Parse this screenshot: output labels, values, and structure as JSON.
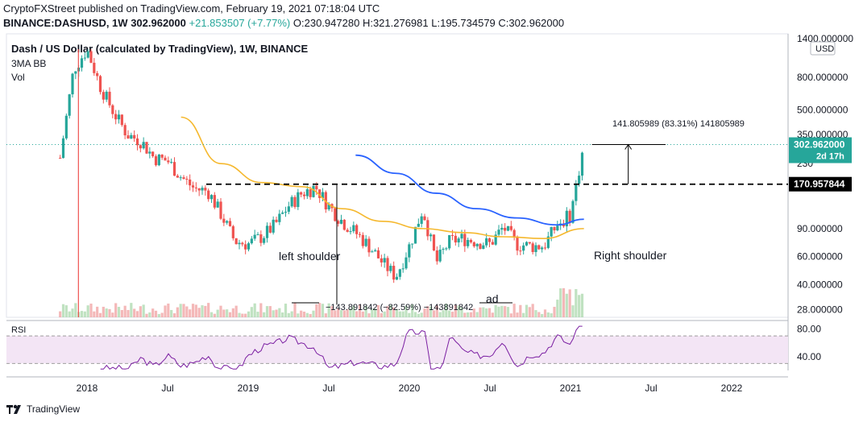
{
  "header": {
    "publisher": "CryptoFXStreet published on TradingView.com, February 19, 2021 07:18:04 UTC",
    "symbol": "BINANCE:DASHUSD, 1W",
    "last": "302.962000",
    "change": "+21.853507 (+7.77%)",
    "open": "O:230.947280",
    "high": "H:321.276981",
    "low": "L:195.734579",
    "close": "C:302.962000"
  },
  "chart_title": "Dash / US Dollar (calculated by TradingView), 1W, BINANCE",
  "legend": {
    "indicator1": "3MA BB",
    "indicator2": "Vol",
    "rsi": "RSI"
  },
  "brand": "TradingView",
  "colors": {
    "up": "#26a69a",
    "down": "#ef5350",
    "ma_orange": "#f5b82e",
    "ma_blue": "#2962ff",
    "rsi": "#7b1fa2",
    "rsi_band": "#f3e5f5"
  },
  "chart_data": {
    "type": "candlestick",
    "title": "Dash / US Dollar (calculated by TradingView), 1W, BINANCE",
    "scale": "log",
    "ylim": [
      25,
      1500
    ],
    "y_ticks": [
      "1400.000000",
      "800.000000",
      "500.000000",
      "350.000000",
      "230",
      "90.000000",
      "60.000000",
      "40.000000",
      "28.000000"
    ],
    "y_currency": "USD",
    "x_ticks": [
      "2018",
      "Jul",
      "2019",
      "Jul",
      "2020",
      "Jul",
      "2021",
      "Jul",
      "2022"
    ],
    "price_labels": [
      {
        "text": "302.962000",
        "sub": "2d 17h",
        "value": 302.962,
        "color": "#26a69a"
      },
      {
        "text": "170.957844",
        "value": 170.957844,
        "color": "#000000"
      }
    ],
    "annotations": {
      "left_shoulder": "left shoulder",
      "right_shoulder": "Right shoulder",
      "head": "ad",
      "measure_up": "141.805989 (83.31%) 141805989",
      "measure_down": "−143.891842 (−82.59%) −143891842"
    },
    "price_path": [
      [
        "2017-11",
        250
      ],
      [
        "2017-12",
        900
      ],
      [
        "2018-01",
        1200
      ],
      [
        "2018-02",
        700
      ],
      [
        "2018-03",
        480
      ],
      [
        "2018-04",
        350
      ],
      [
        "2018-05",
        320
      ],
      [
        "2018-06",
        250
      ],
      [
        "2018-07",
        240
      ],
      [
        "2018-08",
        190
      ],
      [
        "2018-09",
        160
      ],
      [
        "2018-10",
        155
      ],
      [
        "2018-11",
        110
      ],
      [
        "2018-12",
        75
      ],
      [
        "2019-01",
        72
      ],
      [
        "2019-02",
        80
      ],
      [
        "2019-03",
        95
      ],
      [
        "2019-04",
        125
      ],
      [
        "2019-05",
        150
      ],
      [
        "2019-06",
        165
      ],
      [
        "2019-07",
        125
      ],
      [
        "2019-08",
        100
      ],
      [
        "2019-09",
        85
      ],
      [
        "2019-10",
        70
      ],
      [
        "2019-11",
        55
      ],
      [
        "2019-12",
        45
      ],
      [
        "2020-01",
        70
      ],
      [
        "2020-02",
        120
      ],
      [
        "2020-03",
        55
      ],
      [
        "2020-04",
        75
      ],
      [
        "2020-05",
        78
      ],
      [
        "2020-06",
        75
      ],
      [
        "2020-07",
        72
      ],
      [
        "2020-08",
        92
      ],
      [
        "2020-09",
        72
      ],
      [
        "2020-10",
        70
      ],
      [
        "2020-11",
        70
      ],
      [
        "2020-12",
        95
      ],
      [
        "2021-01",
        110
      ],
      [
        "2021-02",
        303
      ]
    ],
    "ma_orange": [
      [
        "2018-08",
        450
      ],
      [
        "2018-11",
        230
      ],
      [
        "2019-02",
        175
      ],
      [
        "2019-05",
        165
      ],
      [
        "2019-08",
        120
      ],
      [
        "2019-11",
        100
      ],
      [
        "2020-02",
        90
      ],
      [
        "2020-05",
        85
      ],
      [
        "2020-08",
        80
      ],
      [
        "2020-11",
        78
      ],
      [
        "2021-02",
        90
      ]
    ],
    "ma_blue": [
      [
        "2019-09",
        260
      ],
      [
        "2019-12",
        200
      ],
      [
        "2020-03",
        150
      ],
      [
        "2020-06",
        120
      ],
      [
        "2020-09",
        105
      ],
      [
        "2020-12",
        95
      ],
      [
        "2021-02",
        103
      ]
    ],
    "neckline": 170.957844,
    "rsi": {
      "ticks": [
        "80.00",
        "40.00"
      ],
      "upper": 70,
      "lower": 30
    }
  }
}
